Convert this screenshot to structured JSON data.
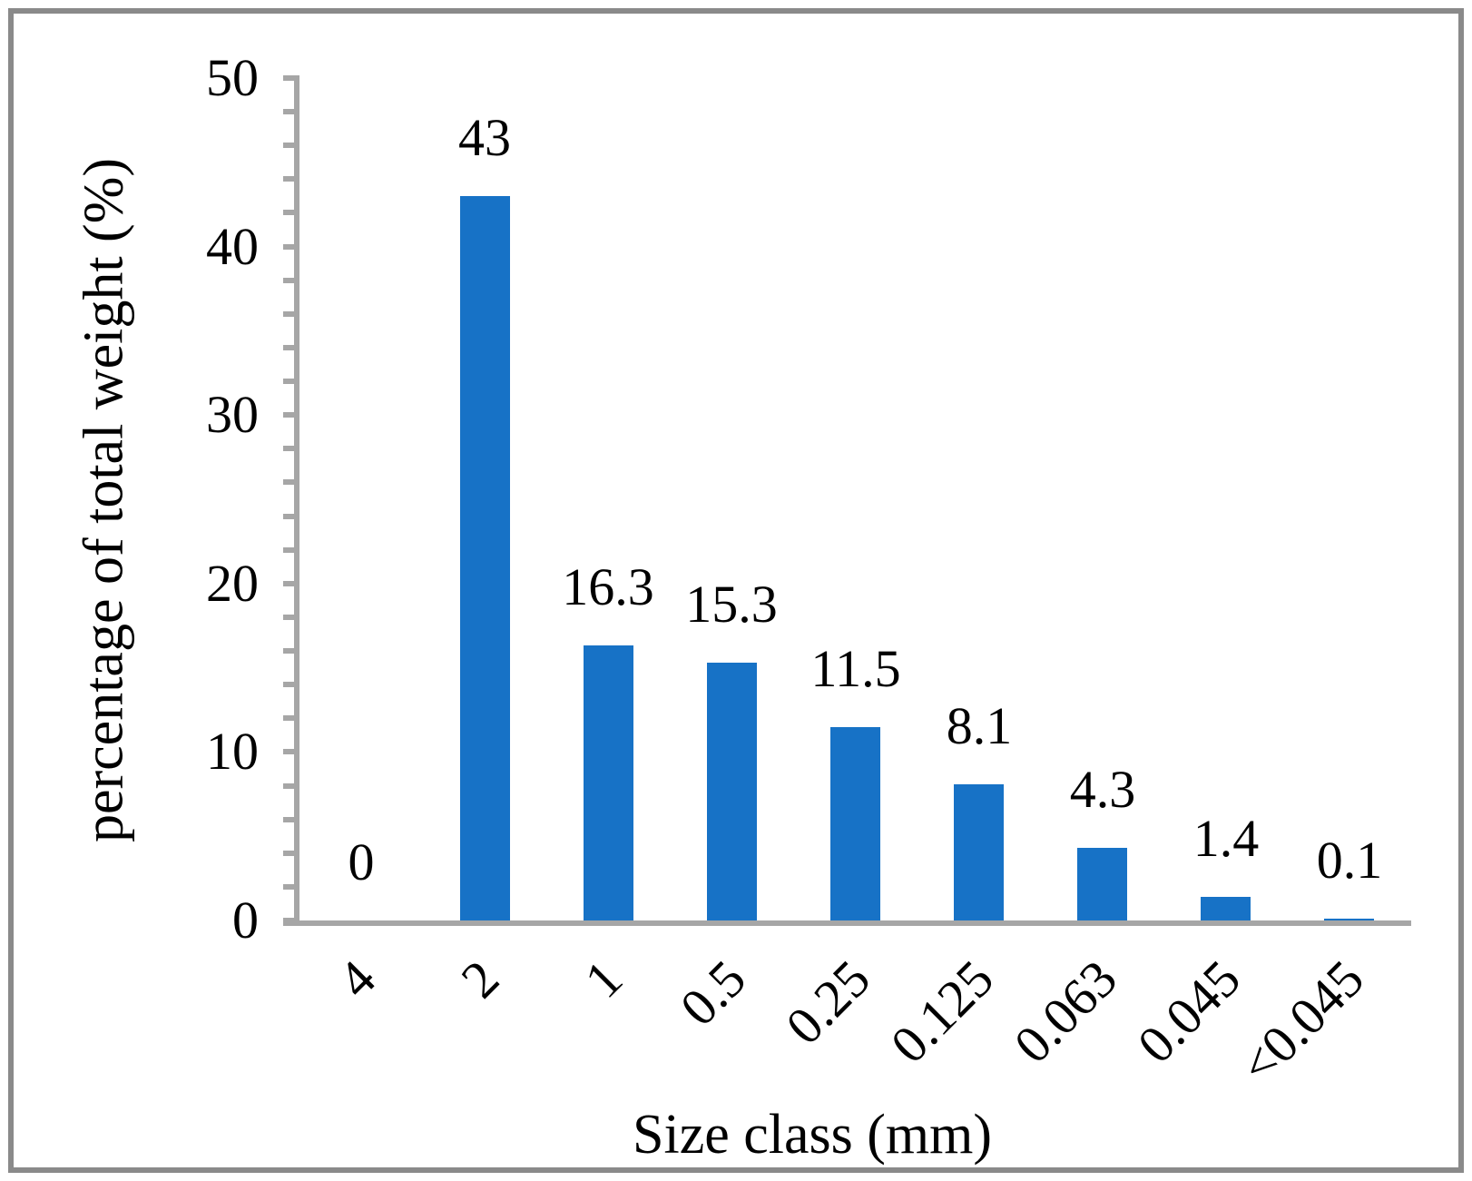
{
  "chart_data": {
    "type": "bar",
    "categories": [
      "4",
      "2",
      "1",
      "0.5",
      "0.25",
      "0.125",
      "0.063",
      "0.045",
      "<0.045"
    ],
    "values": [
      0,
      43,
      16.3,
      15.3,
      11.5,
      8.1,
      4.3,
      1.4,
      0.1
    ],
    "data_labels": [
      "0",
      "43",
      "16.3",
      "15.3",
      "11.5",
      "8.1",
      "4.3",
      "1.4",
      "0.1"
    ],
    "title": "",
    "xlabel": "Size class (mm)",
    "ylabel": "percentage of total weight (%)",
    "ylim": [
      0,
      50
    ],
    "y_tick_labels": [
      0,
      10,
      20,
      30,
      40,
      50
    ],
    "y_minor_tick_step": 2,
    "legend_position": "none",
    "grid": false,
    "bar_color": "#1772c6",
    "axis_color": "#a6a6a6",
    "frame_color": "#8a8a8a",
    "text_color": "#000000"
  }
}
